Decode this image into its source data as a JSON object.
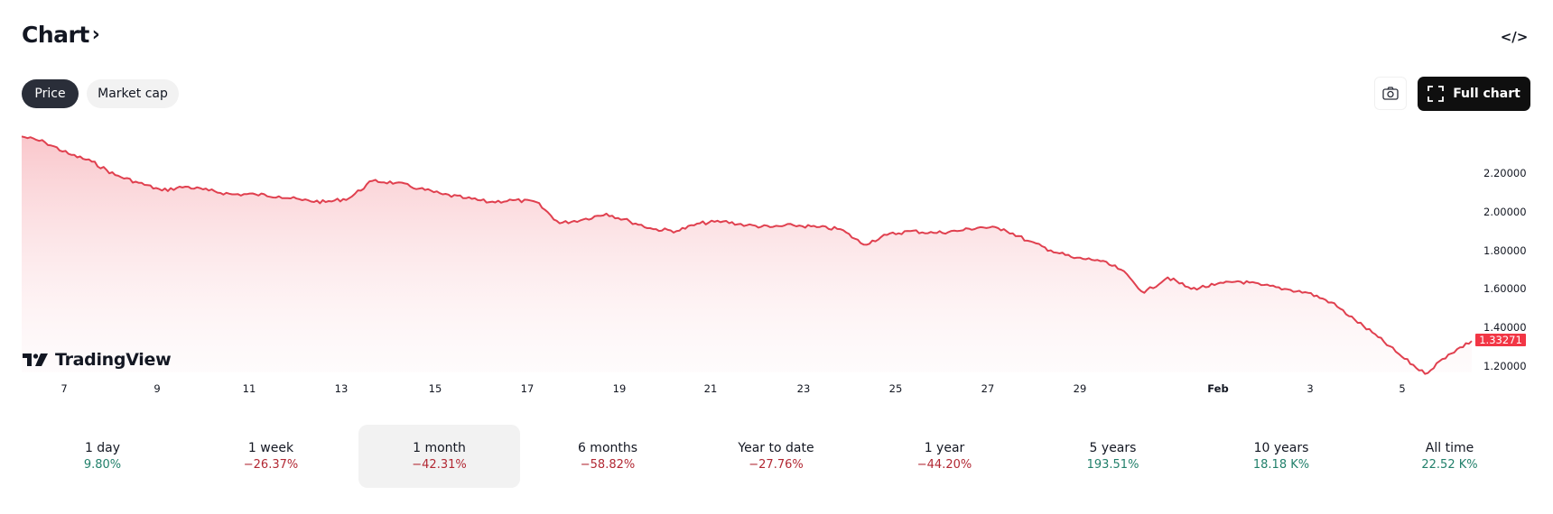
{
  "header": {
    "title": "Chart",
    "title_chevron": "›",
    "embed_icon": "code-icon",
    "embed_glyph": "</>"
  },
  "tabs": [
    {
      "label": "Price",
      "active": true
    },
    {
      "label": "Market cap",
      "active": false
    }
  ],
  "toolbar": {
    "snapshot_icon": "camera-icon",
    "full_chart_label": "Full chart",
    "full_chart_icon": "fullscreen-icon"
  },
  "watermark": "TradingView",
  "current_price_badge": "1.33271",
  "colors": {
    "line": "#e0404f",
    "area_top": "#f9c4c9",
    "badge": "#f23645",
    "positive": "#22806b",
    "negative": "#b22833"
  },
  "chart_data": {
    "type": "area",
    "title": "Price",
    "xlabel": "",
    "ylabel": "",
    "x_tick_labels": [
      "7",
      "9",
      "11",
      "13",
      "15",
      "17",
      "19",
      "21",
      "23",
      "25",
      "27",
      "29",
      "Feb",
      "3",
      "5"
    ],
    "y_tick_labels": [
      "2.20000",
      "2.00000",
      "1.80000",
      "1.60000",
      "1.40000",
      "1.20000"
    ],
    "ylim": [
      1.15,
      2.4
    ],
    "grid": false,
    "legend": null,
    "last_value": 1.33271,
    "x": [
      "Jan 6",
      "Jan 6.5",
      "Jan 7",
      "Jan 7.5",
      "Jan 8",
      "Jan 8.5",
      "Jan 9",
      "Jan 9.5",
      "Jan 10",
      "Jan 11",
      "Jan 12",
      "Jan 12.5",
      "Jan 13",
      "Jan 13.5",
      "Jan 14",
      "Jan 14.5",
      "Jan 15",
      "Jan 15.5",
      "Jan 16",
      "Jan 16.5",
      "Jan 17",
      "Jan 18",
      "Jan 18.9",
      "Jan 19",
      "Jan 19.5",
      "Jan 20",
      "Jan 20.5",
      "Jan 21",
      "Jan 21.5",
      "Jan 22",
      "Jan 22.5",
      "Jan 23",
      "Jan 24",
      "Jan 24.5",
      "Jan 25",
      "Jan 25.5",
      "Jan 26",
      "Jan 26.5",
      "Jan 27",
      "Jan 27.5",
      "Jan 28",
      "Jan 28.5",
      "Jan 29",
      "Jan 29.5",
      "Jan 30",
      "Jan 30.5",
      "Jan 31",
      "Jan 31.5",
      "Feb 1",
      "Feb 1.5",
      "Feb 2",
      "Feb 2.5",
      "Feb 3",
      "Feb 3.5",
      "Feb 4",
      "Feb 4.5",
      "Feb 5",
      "Feb 5.3",
      "Feb 5.6",
      "Feb 5.8",
      "Feb 6",
      "Feb 6.3",
      "Feb 6.5"
    ],
    "values": [
      2.39,
      2.36,
      2.3,
      2.26,
      2.19,
      2.15,
      2.11,
      2.13,
      2.11,
      2.09,
      2.09,
      2.08,
      2.06,
      2.05,
      2.07,
      2.16,
      2.15,
      2.12,
      2.09,
      2.07,
      2.05,
      2.06,
      2.05,
      1.94,
      1.96,
      1.99,
      1.95,
      1.91,
      1.9,
      1.94,
      1.95,
      1.93,
      1.92,
      1.93,
      1.92,
      1.91,
      1.83,
      1.88,
      1.9,
      1.89,
      1.9,
      1.92,
      1.91,
      1.85,
      1.8,
      1.76,
      1.75,
      1.7,
      1.58,
      1.66,
      1.6,
      1.62,
      1.64,
      1.62,
      1.6,
      1.58,
      1.53,
      1.44,
      1.35,
      1.25,
      1.16,
      1.26,
      1.33
    ]
  },
  "periods": [
    {
      "label": "1 day",
      "value": "9.80%",
      "trend": "positive",
      "selected": false
    },
    {
      "label": "1 week",
      "value": "−26.37%",
      "trend": "negative",
      "selected": false
    },
    {
      "label": "1 month",
      "value": "−42.31%",
      "trend": "negative",
      "selected": true
    },
    {
      "label": "6 months",
      "value": "−58.82%",
      "trend": "negative",
      "selected": false
    },
    {
      "label": "Year to date",
      "value": "−27.76%",
      "trend": "negative",
      "selected": false
    },
    {
      "label": "1 year",
      "value": "−44.20%",
      "trend": "negative",
      "selected": false
    },
    {
      "label": "5 years",
      "value": "193.51%",
      "trend": "positive",
      "selected": false
    },
    {
      "label": "10 years",
      "value": "18.18 K%",
      "trend": "positive",
      "selected": false
    },
    {
      "label": "All time",
      "value": "22.52 K%",
      "trend": "positive",
      "selected": false
    }
  ]
}
